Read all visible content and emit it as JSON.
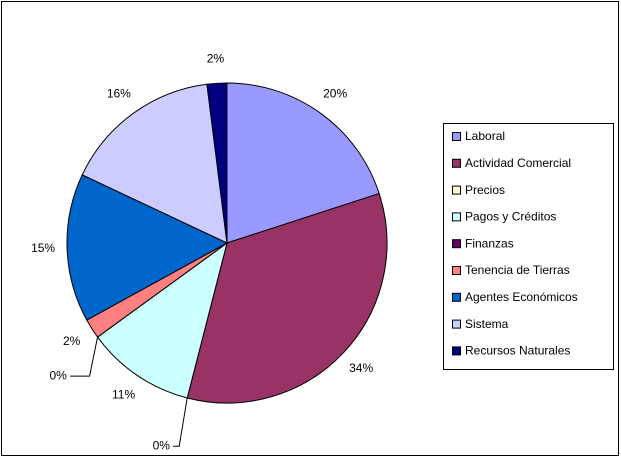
{
  "chart_data": {
    "type": "pie",
    "categories": [
      "Laboral",
      "Actividad Comercial",
      "Precios",
      "Pagos y Créditos",
      "Finanzas",
      "Tenencia de Tierras",
      "Agentes Económicos",
      "Sistema",
      "Recursos Naturales"
    ],
    "values": [
      20,
      34,
      0,
      11,
      0,
      2,
      15,
      16,
      2
    ],
    "value_labels": [
      "20%",
      "34%",
      "0%",
      "11%",
      "0%",
      "2%",
      "15%",
      "16%",
      "2%"
    ],
    "colors": [
      "#9999ff",
      "#993366",
      "#ffffcc",
      "#ccffff",
      "#660066",
      "#ff8080",
      "#0066cc",
      "#ccccff",
      "#000080"
    ],
    "legend": "right"
  }
}
